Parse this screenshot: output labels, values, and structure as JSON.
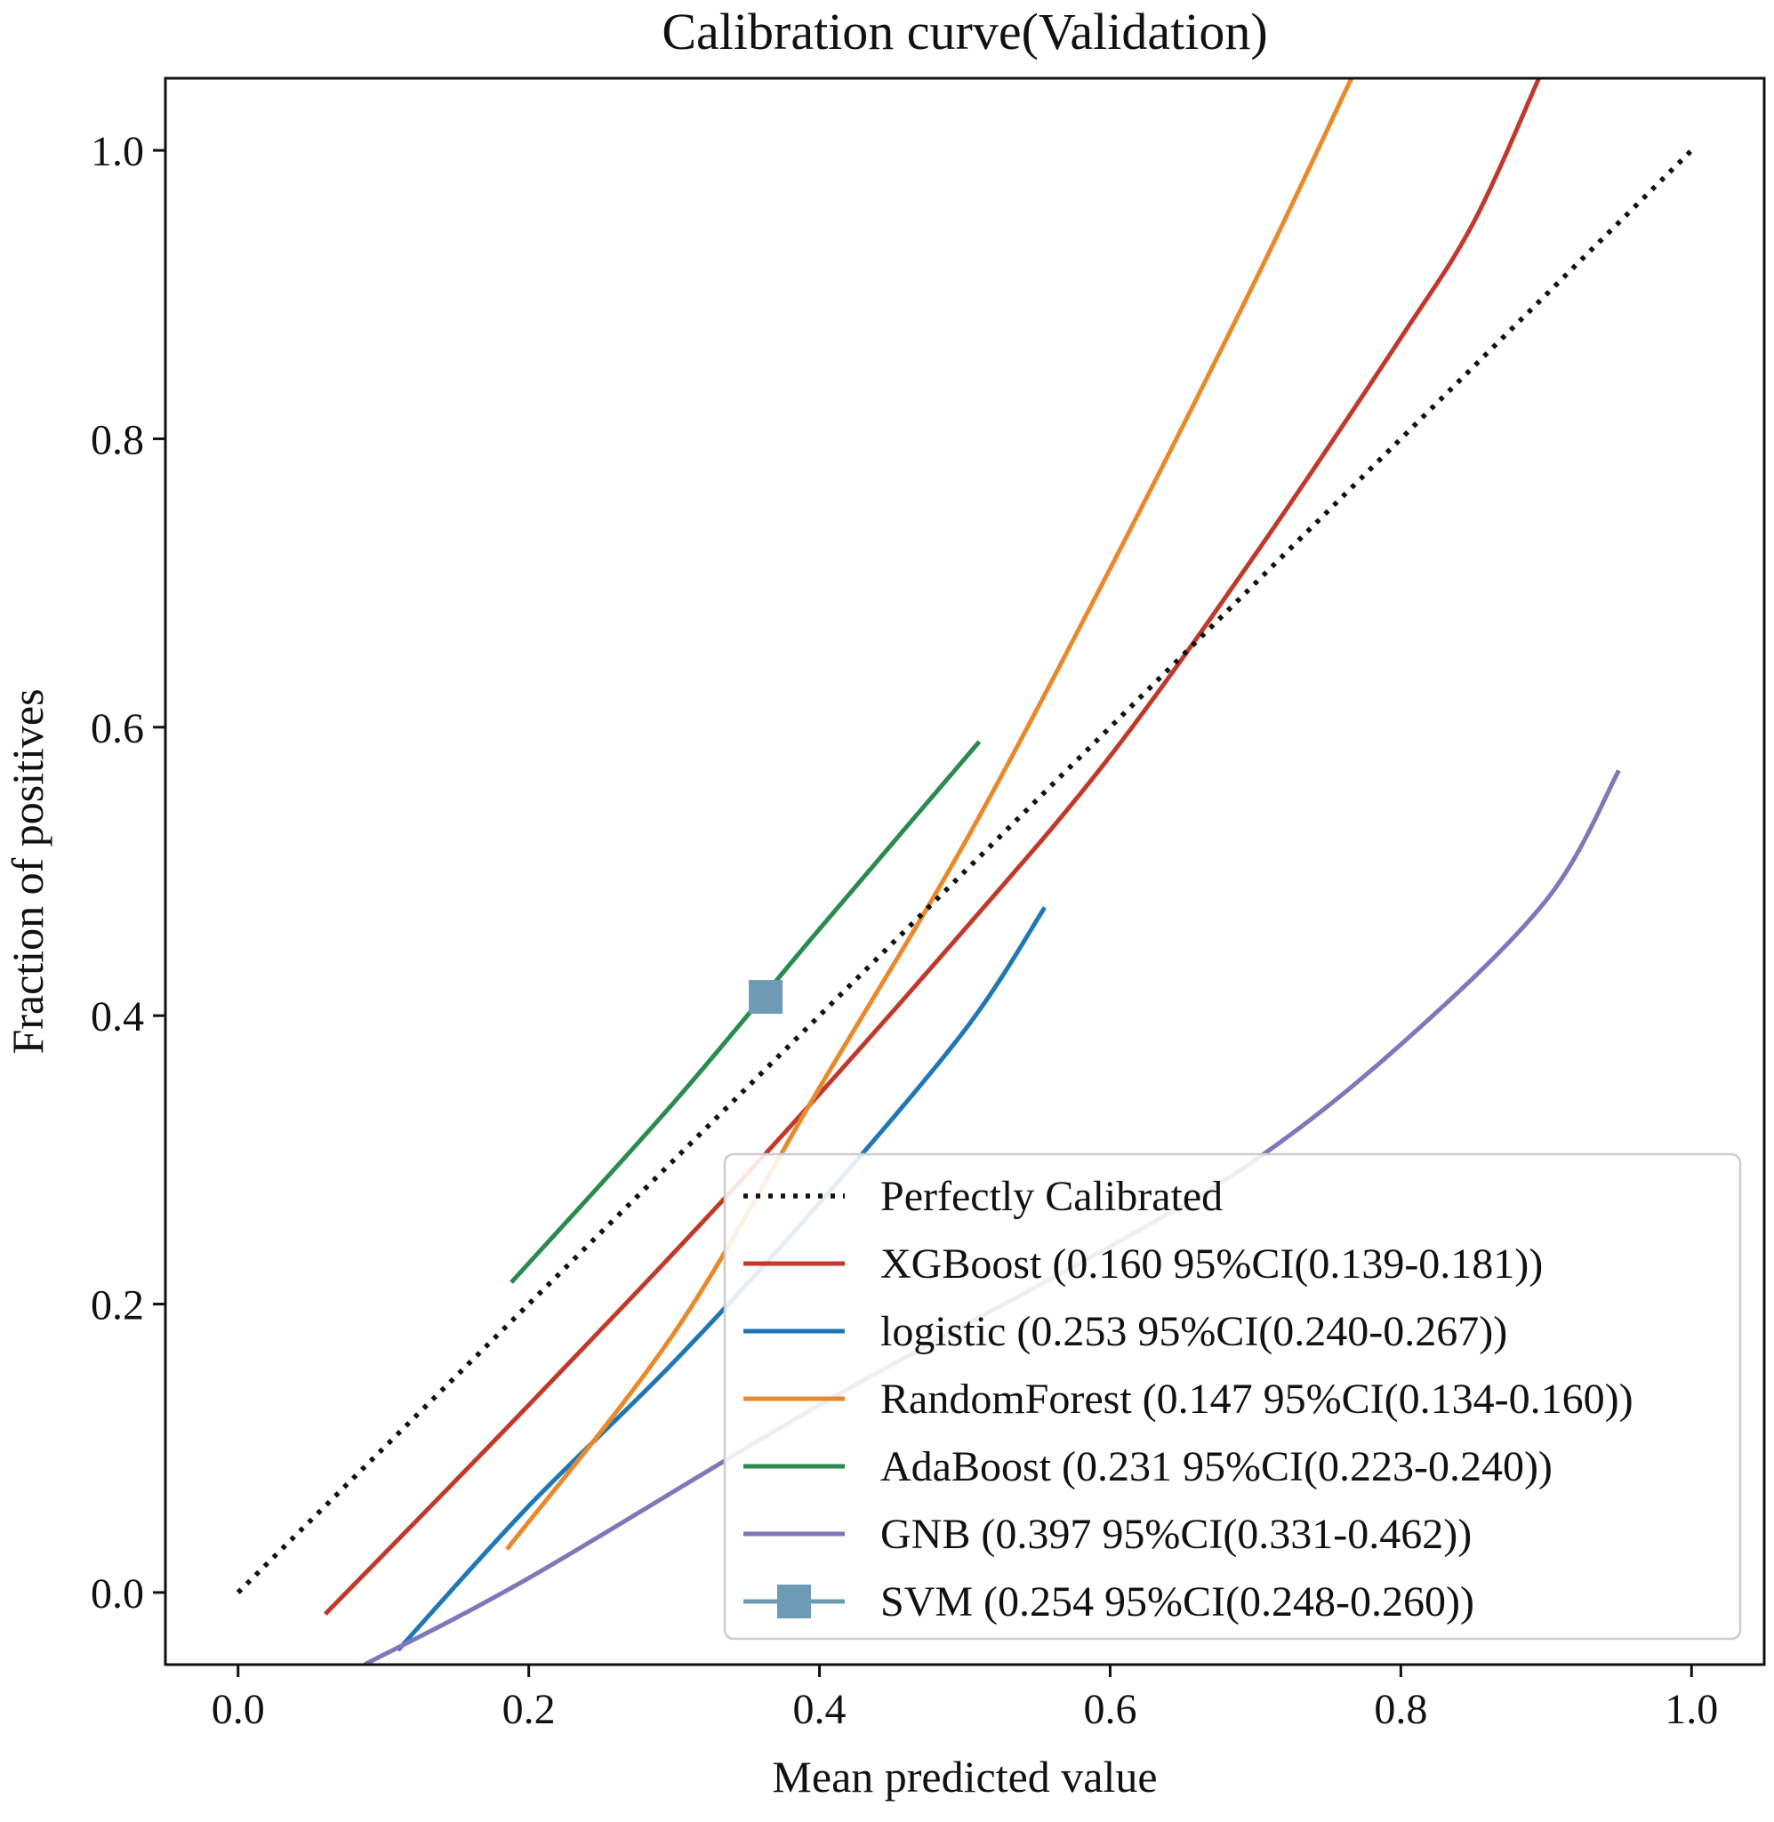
{
  "chart_data": {
    "type": "line",
    "title": "Calibration curve(Validation)",
    "xlabel": "Mean predicted value",
    "ylabel": "Fraction of positives",
    "xlim": [
      -0.05,
      1.05
    ],
    "ylim": [
      -0.05,
      1.05
    ],
    "x_ticks": [
      0.0,
      0.2,
      0.4,
      0.6,
      0.8,
      1.0
    ],
    "y_ticks": [
      0.0,
      0.2,
      0.4,
      0.6,
      0.8,
      1.0
    ],
    "x_tick_labels": [
      "0.0",
      "0.2",
      "0.4",
      "0.6",
      "0.8",
      "1.0"
    ],
    "y_tick_labels": [
      "0.0",
      "0.2",
      "0.4",
      "0.6",
      "0.8",
      "1.0"
    ],
    "grid": false,
    "legend_position": "bottom-right",
    "series": [
      {
        "name": "Perfectly Calibrated",
        "label": "Perfectly Calibrated",
        "color": "#111111",
        "style": "dotted",
        "x": [
          0.0,
          1.0
        ],
        "y": [
          0.0,
          1.0
        ]
      },
      {
        "name": "XGBoost",
        "label": "XGBoost (0.160 95%CI(0.139-0.181))",
        "color": "#c0392b",
        "style": "solid",
        "x": [
          0.06,
          0.2,
          0.35,
          0.5,
          0.6,
          0.7,
          0.8,
          0.85,
          0.895
        ],
        "y": [
          -0.015,
          0.13,
          0.29,
          0.46,
          0.58,
          0.72,
          0.87,
          0.95,
          1.05
        ]
      },
      {
        "name": "logistic",
        "label": "logistic (0.253 95%CI(0.240-0.267))",
        "color": "#1f77b4",
        "style": "solid",
        "x": [
          0.11,
          0.2,
          0.3,
          0.4,
          0.5,
          0.555
        ],
        "y": [
          -0.04,
          0.06,
          0.16,
          0.27,
          0.39,
          0.475
        ]
      },
      {
        "name": "RandomForest",
        "label": "RandomForest (0.147 95%CI(0.134-0.160))",
        "color": "#e8892b",
        "style": "solid",
        "x": [
          0.185,
          0.3,
          0.4,
          0.5,
          0.6,
          0.7,
          0.766
        ],
        "y": [
          0.03,
          0.18,
          0.35,
          0.52,
          0.71,
          0.91,
          1.05
        ]
      },
      {
        "name": "AdaBoost",
        "label": "AdaBoost (0.231 95%CI(0.223-0.240))",
        "color": "#2a8a4f",
        "style": "solid",
        "x": [
          0.188,
          0.3,
          0.4,
          0.51
        ],
        "y": [
          0.215,
          0.34,
          0.46,
          0.59
        ]
      },
      {
        "name": "GNB",
        "label": "GNB (0.397 95%CI(0.331-0.462))",
        "color": "#7f77b8",
        "style": "solid",
        "x": [
          0.087,
          0.2,
          0.4,
          0.6,
          0.7,
          0.8,
          0.9,
          0.95
        ],
        "y": [
          -0.05,
          0.01,
          0.13,
          0.24,
          0.3,
          0.38,
          0.48,
          0.57
        ]
      },
      {
        "name": "SVM",
        "label": "SVM (0.254 95%CI(0.248-0.260))",
        "color": "#6d9ab5",
        "style": "marker-square",
        "x": [
          0.363
        ],
        "y": [
          0.413
        ]
      }
    ]
  }
}
